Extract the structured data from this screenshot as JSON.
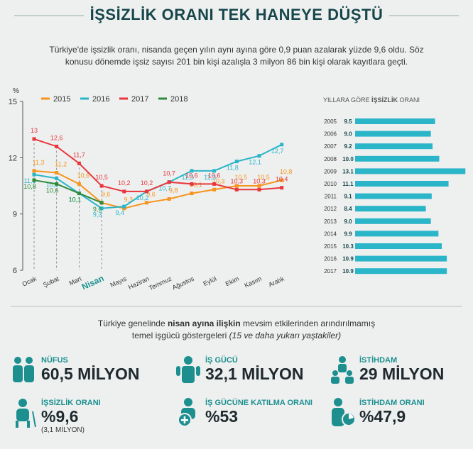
{
  "title": "İŞSİZLİK ORANI TEK HANEYE DÜŞTÜ",
  "subtitle": "Türkiye'de işsizlik oranı, nisanda geçen yılın aynı ayına göre 0,9 puan azalarak yüzde 9,6 oldu. Söz konusu dönemde işsiz sayısı 201 bin kişi azalışla 3 milyon 86 bin kişi olarak kayıtlara geçti.",
  "chart_data": [
    {
      "type": "line",
      "y_label": "%",
      "categories": [
        "Ocak",
        "Şubat",
        "Mart",
        "Nisan",
        "Mayıs",
        "Haziran",
        "Temmuz",
        "Ağustos",
        "Eylül",
        "Ekim",
        "Kasım",
        "Aralık"
      ],
      "highlight": "Nisan",
      "ylim": [
        6,
        15
      ],
      "yticks": [
        6,
        9,
        12,
        15
      ],
      "series": [
        {
          "name": "2015",
          "color": "#f7941d",
          "values": [
            11.3,
            11.2,
            10.6,
            9.6,
            9.3,
            9.6,
            9.8,
            10.1,
            10.3,
            10.5,
            10.5,
            10.8
          ],
          "value_labels": [
            "11,3",
            "11,2",
            "10,6",
            "9,6",
            "9,3",
            "9,6",
            "9,8",
            "10,1",
            "10,3",
            "10,5",
            "10,5",
            "10,8"
          ]
        },
        {
          "name": "2016",
          "color": "#2bb5c8",
          "values": [
            11.1,
            10.9,
            10.1,
            9.3,
            9.4,
            10.2,
            10.7,
            11.3,
            11.3,
            11.8,
            12.1,
            12.7
          ],
          "value_labels": [
            "11,1",
            "10,9",
            "10,1",
            "9,3",
            "9,4",
            "10,2",
            "10,7",
            "11,3",
            "11,3",
            "11,8",
            "12,1",
            "12,7"
          ]
        },
        {
          "name": "2017",
          "color": "#e8363c",
          "values": [
            13,
            12.6,
            11.7,
            10.5,
            10.2,
            10.2,
            10.7,
            10.6,
            10.6,
            10.3,
            10.3,
            10.4
          ],
          "value_labels": [
            "13",
            "12,6",
            "11,7",
            "10,5",
            "10,2",
            "10,2",
            "10,7",
            "10,6",
            "10,6",
            "10,3",
            "10,3",
            "10,4"
          ]
        },
        {
          "name": "2018",
          "color": "#2e8b3a",
          "values": [
            10.8,
            10.6,
            10.1,
            9.6,
            null,
            null,
            null,
            null,
            null,
            null,
            null,
            null
          ],
          "value_labels": [
            "10,8",
            "10,6",
            "10,1",
            "9,6",
            null,
            null,
            null,
            null,
            null,
            null,
            null,
            null
          ]
        }
      ]
    },
    {
      "type": "hbar",
      "title_parts": [
        "YILLARA GÖRE ",
        "İŞSİZLİK",
        " ORANI"
      ],
      "categories": [
        "2005",
        "2006",
        "2007",
        "2008",
        "2009",
        "2010",
        "2011",
        "2012",
        "2013",
        "2014",
        "2015",
        "2016",
        "2017"
      ],
      "values": [
        9.5,
        9.0,
        9.2,
        10.0,
        13.1,
        11.1,
        9.1,
        8.4,
        9.0,
        9.9,
        10.3,
        10.9,
        10.9
      ],
      "value_labels": [
        "9.5",
        "9.0",
        "9.2",
        "10.0",
        "13.1",
        "11.1",
        "9.1",
        "8.4",
        "9.0",
        "9.9",
        "10.3",
        "10.9",
        "10.9"
      ],
      "color": "#2bb5c8",
      "xlim": [
        0,
        13.5
      ]
    }
  ],
  "intro": [
    "Türkiye genelinde ",
    "nisan ayına ilişkin",
    " mevsim etkilerinden arındırılmamış",
    "temel işgücü göstergeleri ",
    "(15 ve daha yukarı yaştakiler)"
  ],
  "stats": [
    {
      "label": "NÜFUS",
      "value": "60,5 MİLYON"
    },
    {
      "label": "İŞ GÜCÜ",
      "value": "32,1 MİLYON"
    },
    {
      "label": "İSTİHDAM",
      "value": "29 MİLYON"
    },
    {
      "label": "İŞSİZLİK ORANI",
      "value": "%9,6",
      "note": "(3,1 MİLYON)"
    },
    {
      "label": "İŞ GÜCÜNE KATILMA ORANI",
      "value": "%53"
    },
    {
      "label": "İSTİHDAM ORANI",
      "value": "%47,9"
    }
  ]
}
